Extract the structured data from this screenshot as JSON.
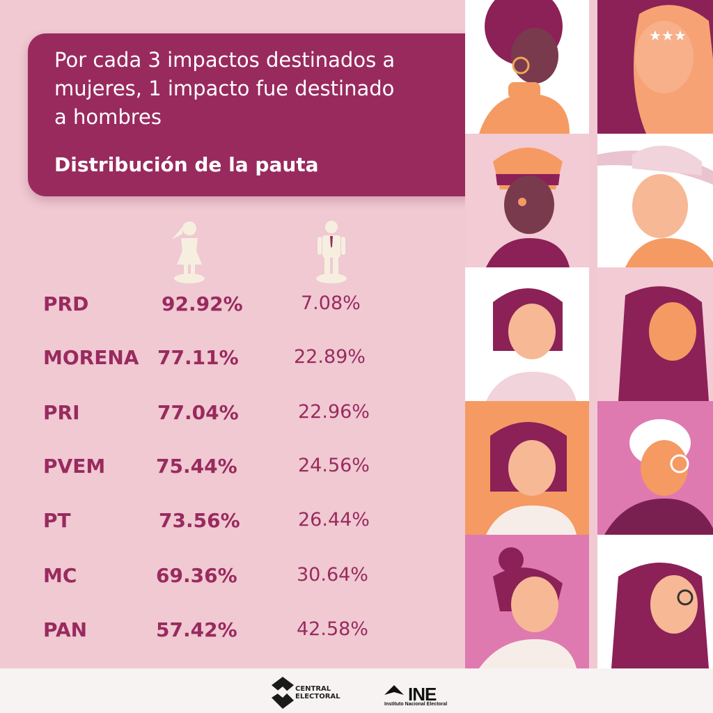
{
  "header": {
    "lines": [
      "Por cada 3 impactos destinados a",
      "mujeres, 1 impacto fue destinado",
      "a hombres"
    ],
    "subtitle": "Distribución de la pauta"
  },
  "table": {
    "rows": [
      {
        "party": "PRD",
        "women": "92.92%",
        "men": "7.08%"
      },
      {
        "party": "MORENA",
        "women": "77.11%",
        "men": "22.89%"
      },
      {
        "party": "PRI",
        "women": "77.04%",
        "men": "22.96%"
      },
      {
        "party": "PVEM",
        "women": "75.44%",
        "men": "24.56%"
      },
      {
        "party": "PT",
        "women": "73.56%",
        "men": "26.44%"
      },
      {
        "party": "MC",
        "women": "69.36%",
        "men": "30.64%"
      },
      {
        "party": "PAN",
        "women": "57.42%",
        "men": "42.58%"
      }
    ]
  },
  "footer": {
    "logo1_line1": "CENTRAL",
    "logo1_line2": "ELECTORAL",
    "logo2_name": "INE",
    "logo2_sub": "Instituto Nacional Electoral"
  },
  "colors": {
    "accent": "#992a5e",
    "background": "#f0c9d2",
    "icon_cream": "#f6efe0"
  },
  "icons": [
    "woman-icon",
    "man-icon"
  ]
}
